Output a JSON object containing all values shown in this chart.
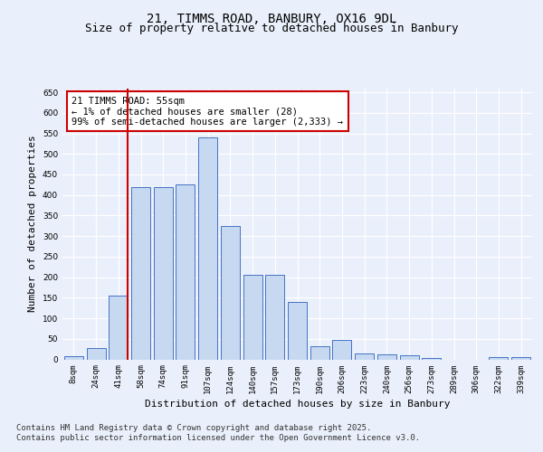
{
  "title_line1": "21, TIMMS ROAD, BANBURY, OX16 9DL",
  "title_line2": "Size of property relative to detached houses in Banbury",
  "xlabel": "Distribution of detached houses by size in Banbury",
  "ylabel": "Number of detached properties",
  "categories": [
    "8sqm",
    "24sqm",
    "41sqm",
    "58sqm",
    "74sqm",
    "91sqm",
    "107sqm",
    "124sqm",
    "140sqm",
    "157sqm",
    "173sqm",
    "190sqm",
    "206sqm",
    "223sqm",
    "240sqm",
    "256sqm",
    "273sqm",
    "289sqm",
    "306sqm",
    "322sqm",
    "339sqm"
  ],
  "values": [
    8,
    28,
    155,
    420,
    420,
    425,
    540,
    325,
    205,
    205,
    140,
    33,
    48,
    15,
    13,
    9,
    3,
    0,
    0,
    6,
    6
  ],
  "bar_color": "#c7d9f0",
  "bar_edge_color": "#4472c4",
  "vline_color": "#cc0000",
  "vline_x_idx": 2,
  "annotation_text": "21 TIMMS ROAD: 55sqm\n← 1% of detached houses are smaller (28)\n99% of semi-detached houses are larger (2,333) →",
  "annotation_box_color": "#ffffff",
  "annotation_box_edge": "#cc0000",
  "ylim": [
    0,
    660
  ],
  "yticks": [
    0,
    50,
    100,
    150,
    200,
    250,
    300,
    350,
    400,
    450,
    500,
    550,
    600,
    650
  ],
  "footer_line1": "Contains HM Land Registry data © Crown copyright and database right 2025.",
  "footer_line2": "Contains public sector information licensed under the Open Government Licence v3.0.",
  "bg_color": "#eaf0fb",
  "plot_bg_color": "#eaf0fb",
  "grid_color": "#ffffff",
  "title_fontsize": 10,
  "subtitle_fontsize": 9,
  "tick_fontsize": 6.5,
  "ylabel_fontsize": 8,
  "xlabel_fontsize": 8,
  "footer_fontsize": 6.5,
  "annotation_fontsize": 7.5
}
